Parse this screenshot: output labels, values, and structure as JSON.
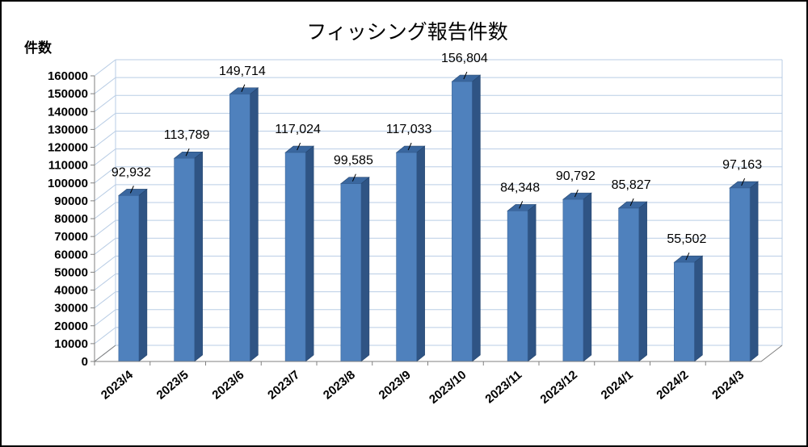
{
  "chart_data": {
    "type": "bar",
    "title": "フィッシング報告件数",
    "ylabel": "件数",
    "xlabel": "",
    "categories": [
      "2023/4",
      "2023/5",
      "2023/6",
      "2023/7",
      "2023/8",
      "2023/9",
      "2023/10",
      "2023/11",
      "2023/12",
      "2024/1",
      "2024/2",
      "2024/3"
    ],
    "values": [
      92932,
      113789,
      149714,
      117024,
      99585,
      117033,
      156804,
      84348,
      90792,
      85827,
      55502,
      97163
    ],
    "data_labels": [
      "92,932",
      "113,789",
      "149,714",
      "117,024",
      "99,585",
      "117,033",
      "156,804",
      "84,348",
      "90,792",
      "85,827",
      "55,502",
      "97,163"
    ],
    "ylim": [
      0,
      160000
    ],
    "yticks": [
      "0",
      "10000",
      "20000",
      "30000",
      "40000",
      "50000",
      "60000",
      "70000",
      "80000",
      "90000",
      "100000",
      "110000",
      "120000",
      "130000",
      "140000",
      "150000",
      "160000"
    ],
    "grid": true,
    "style": "3d-column",
    "bar_color": "#4f81bd",
    "gridline_color": "#b9cde5"
  }
}
